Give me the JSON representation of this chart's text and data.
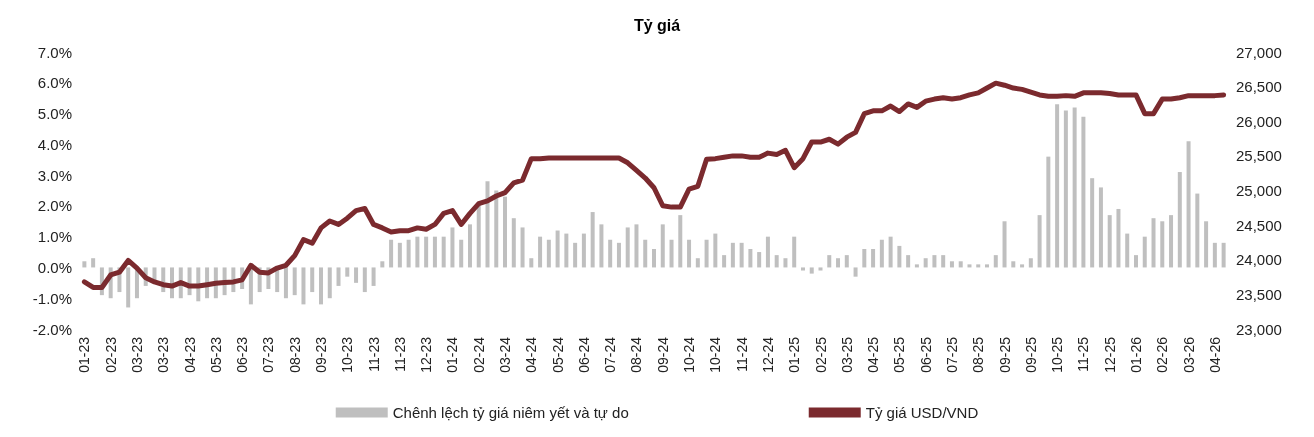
{
  "chart_data": {
    "type": "bar",
    "title": "Tỷ giá",
    "categories": [
      "01-23",
      null,
      null,
      "02-23",
      null,
      null,
      "03-23",
      null,
      null,
      "03-23",
      null,
      null,
      "04-23",
      null,
      null,
      "05-23",
      null,
      null,
      "06-23",
      null,
      null,
      "07-23",
      null,
      null,
      "08-23",
      null,
      null,
      "09-23",
      null,
      null,
      "10-23",
      null,
      null,
      "11-23",
      null,
      null,
      "11-23",
      null,
      null,
      "12-23",
      null,
      null,
      "01-24",
      null,
      null,
      "02-24",
      null,
      null,
      "03-24",
      null,
      null,
      "04-24",
      null,
      null,
      "05-24",
      null,
      null,
      "06-24",
      null,
      null,
      "07-24",
      null,
      null,
      "08-24",
      null,
      null,
      "09-24",
      null,
      null,
      "10-24",
      null,
      null,
      "10-24",
      null,
      null,
      "11-24",
      null,
      null,
      "12-24",
      null,
      null,
      "01-25",
      null,
      null,
      "02-25",
      null,
      null,
      "03-25",
      null,
      null,
      "04-25",
      null,
      null,
      "05-25",
      null,
      null,
      "06-25",
      null,
      null,
      "07-25",
      null,
      null,
      "08-25",
      null,
      null,
      "09-25",
      null,
      null,
      "09-25",
      null,
      null,
      "10-25",
      null,
      null,
      "11-25",
      null,
      null,
      "12-25",
      null,
      null,
      "01-26",
      null,
      null,
      "02-26",
      null,
      null,
      "03-26",
      null,
      null,
      "04-26",
      null
    ],
    "series": [
      {
        "name": "Chênh lệch tỷ giá niêm yết và tự do",
        "color": "#bfbfbf",
        "values": [
          0.2,
          0.3,
          -0.9,
          -1.0,
          -0.8,
          -1.3,
          -1.0,
          -0.6,
          -0.5,
          -0.8,
          -1.0,
          -1.0,
          -0.9,
          -1.1,
          -1.0,
          -1.0,
          -0.9,
          -0.8,
          -0.7,
          -1.2,
          -0.8,
          -0.7,
          -0.8,
          -1.0,
          -0.9,
          -1.2,
          -0.8,
          -1.2,
          -1.0,
          -0.6,
          -0.3,
          -0.5,
          -0.8,
          -0.6,
          0.2,
          0.9,
          0.8,
          0.9,
          1.0,
          1.0,
          1.0,
          1.0,
          1.3,
          0.9,
          1.4,
          2.1,
          2.8,
          2.5,
          2.3,
          1.6,
          1.3,
          0.3,
          1.0,
          0.9,
          1.2,
          1.1,
          0.8,
          1.1,
          1.8,
          1.4,
          0.9,
          0.8,
          1.3,
          1.4,
          0.9,
          0.6,
          1.4,
          0.9,
          1.7,
          0.9,
          0.3,
          0.9,
          1.1,
          0.4,
          0.8,
          0.8,
          0.6,
          0.5,
          1.0,
          0.4,
          0.3,
          1.0,
          -0.1,
          -0.2,
          -0.1,
          0.4,
          0.3,
          0.4,
          -0.3,
          0.6,
          0.6,
          0.9,
          1.0,
          0.7,
          0.4,
          0.1,
          0.3,
          0.4,
          0.4,
          0.2,
          0.2,
          0.1,
          0.1,
          0.1,
          0.4,
          1.5,
          0.2,
          0.1,
          0.3,
          1.7,
          3.6,
          5.3,
          5.1,
          5.2,
          4.9,
          2.9,
          2.6,
          1.7,
          1.9,
          1.1,
          0.4,
          1.0,
          1.6,
          1.5,
          1.7,
          3.1,
          4.1,
          2.4,
          1.5,
          0.8,
          0.8
        ]
      },
      {
        "name": "Tỷ giá USD/VND",
        "type": "line",
        "axis": "y2",
        "color": "#7b2a2e",
        "values": [
          23680,
          23600,
          23600,
          23780,
          23820,
          23990,
          23880,
          23740,
          23680,
          23640,
          23620,
          23670,
          23620,
          23620,
          23640,
          23660,
          23670,
          23680,
          23710,
          23920,
          23820,
          23810,
          23880,
          23920,
          24060,
          24290,
          24240,
          24460,
          24560,
          24510,
          24600,
          24710,
          24740,
          24510,
          24460,
          24400,
          24420,
          24420,
          24460,
          24440,
          24510,
          24670,
          24710,
          24510,
          24670,
          24810,
          24850,
          24920,
          24970,
          25110,
          25150,
          25460,
          25460,
          25470,
          25470,
          25470,
          25470,
          25470,
          25470,
          25470,
          25470,
          25470,
          25400,
          25290,
          25180,
          25040,
          24780,
          24760,
          24760,
          25020,
          25060,
          25450,
          25460,
          25480,
          25500,
          25500,
          25480,
          25480,
          25540,
          25520,
          25580,
          25330,
          25460,
          25700,
          25700,
          25740,
          25670,
          25770,
          25840,
          26110,
          26150,
          26150,
          26220,
          26140,
          26250,
          26200,
          26290,
          26320,
          26340,
          26320,
          26340,
          26380,
          26410,
          26480,
          26550,
          26520,
          26480,
          26460,
          26420,
          26380,
          26360,
          26360,
          26370,
          26360,
          26410,
          26410,
          26410,
          26400,
          26380,
          26380,
          26380,
          26110,
          26110,
          26320,
          26320,
          26340,
          26370,
          26370,
          26370,
          26370,
          26380
        ]
      }
    ],
    "ylim": [
      -2,
      7
    ],
    "yticks": [
      {
        "value": -2,
        "label": "-2.0%"
      },
      {
        "value": -1,
        "label": "-1.0%"
      },
      {
        "value": 0,
        "label": "0.0%"
      },
      {
        "value": 1,
        "label": "1.0%"
      },
      {
        "value": 2,
        "label": "2.0%"
      },
      {
        "value": 3,
        "label": "3.0%"
      },
      {
        "value": 4,
        "label": "4.0%"
      },
      {
        "value": 5,
        "label": "5.0%"
      },
      {
        "value": 6,
        "label": "6.0%"
      },
      {
        "value": 7,
        "label": "7.0%"
      }
    ],
    "y2lim": [
      23000,
      27000
    ],
    "y2ticks": [
      {
        "value": 23000,
        "label": "23,000"
      },
      {
        "value": 23500,
        "label": "23,500"
      },
      {
        "value": 24000,
        "label": "24,000"
      },
      {
        "value": 24500,
        "label": "24,500"
      },
      {
        "value": 25000,
        "label": "25,000"
      },
      {
        "value": 25500,
        "label": "25,500"
      },
      {
        "value": 26000,
        "label": "26,000"
      },
      {
        "value": 26500,
        "label": "26,500"
      },
      {
        "value": 27000,
        "label": "27,000"
      }
    ],
    "legend": "bottom",
    "grid": false,
    "marker": "none"
  }
}
